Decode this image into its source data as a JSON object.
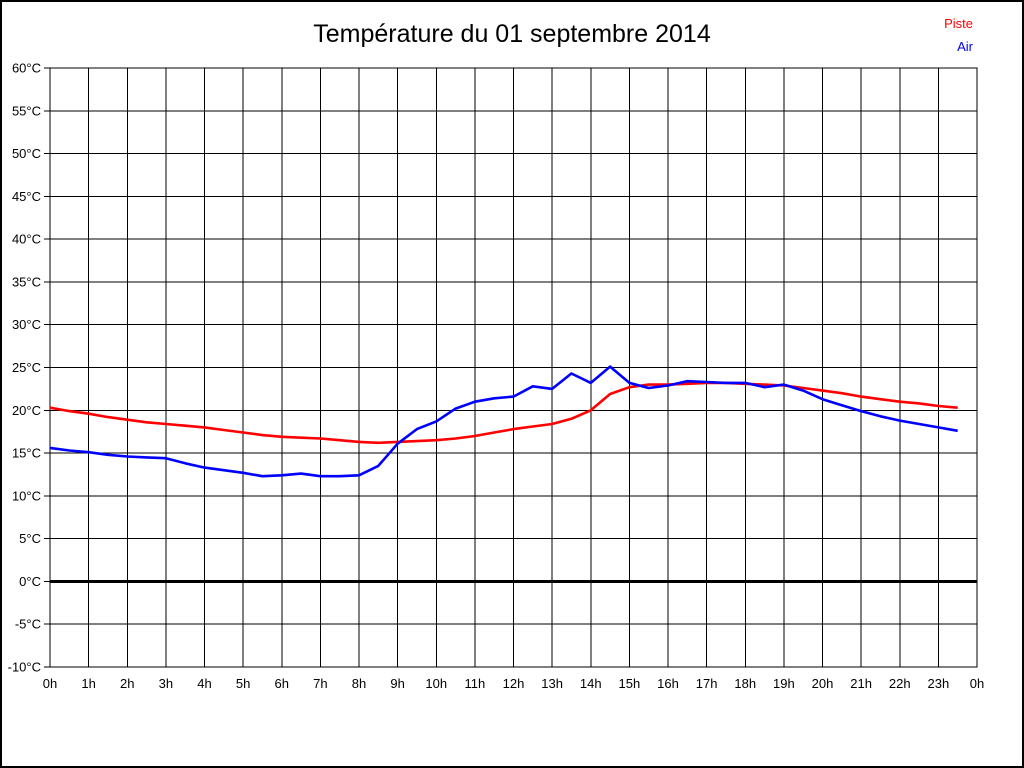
{
  "chart_data": {
    "type": "line",
    "title": "Température du 01 septembre 2014",
    "xlabel": "",
    "ylabel": "",
    "xlim": [
      0,
      24
    ],
    "ylim": [
      -10,
      60
    ],
    "y_tick_step": 5,
    "y_unit": "°C",
    "grid": true,
    "zero_line": true,
    "legend_position": "top-right",
    "x_tick_labels": [
      "0h",
      "1h",
      "2h",
      "3h",
      "4h",
      "5h",
      "6h",
      "7h",
      "8h",
      "9h",
      "10h",
      "11h",
      "12h",
      "13h",
      "14h",
      "15h",
      "16h",
      "17h",
      "18h",
      "19h",
      "20h",
      "21h",
      "22h",
      "23h",
      "0h"
    ],
    "y_tick_labels": [
      "-10°C",
      "-5°C",
      "0°C",
      "5°C",
      "10°C",
      "15°C",
      "20°C",
      "25°C",
      "30°C",
      "35°C",
      "40°C",
      "45°C",
      "50°C",
      "55°C",
      "60°C"
    ],
    "x": [
      0,
      0.5,
      1,
      1.5,
      2,
      2.5,
      3,
      3.5,
      4,
      4.5,
      5,
      5.5,
      6,
      6.5,
      7,
      7.5,
      8,
      8.5,
      9,
      9.5,
      10,
      10.5,
      11,
      11.5,
      12,
      12.5,
      13,
      13.5,
      14,
      14.5,
      15,
      15.5,
      16,
      16.5,
      17,
      17.5,
      18,
      18.5,
      19,
      19.5,
      20,
      20.5,
      21,
      21.5,
      22,
      22.5,
      23,
      23.5
    ],
    "series": [
      {
        "name": "Piste",
        "color": "#ff0000",
        "values": [
          20.3,
          19.9,
          19.6,
          19.2,
          18.9,
          18.6,
          18.4,
          18.2,
          18.0,
          17.7,
          17.4,
          17.1,
          16.9,
          16.8,
          16.7,
          16.5,
          16.3,
          16.2,
          16.3,
          16.4,
          16.5,
          16.7,
          17.0,
          17.4,
          17.8,
          18.1,
          18.4,
          19.0,
          20.0,
          21.9,
          22.7,
          23.0,
          23.0,
          23.1,
          23.2,
          23.2,
          23.1,
          23.0,
          22.9,
          22.6,
          22.3,
          22.0,
          21.6,
          21.3,
          21.0,
          20.8,
          20.5,
          20.3
        ]
      },
      {
        "name": "Air",
        "color": "#0000ff",
        "values": [
          15.6,
          15.3,
          15.1,
          14.8,
          14.6,
          14.5,
          14.4,
          13.8,
          13.3,
          13.0,
          12.7,
          12.3,
          12.4,
          12.6,
          12.3,
          12.3,
          12.4,
          13.5,
          16.1,
          17.8,
          18.7,
          20.2,
          21.0,
          21.4,
          21.6,
          22.8,
          22.5,
          24.3,
          23.2,
          25.1,
          23.2,
          22.6,
          22.9,
          23.4,
          23.3,
          23.2,
          23.2,
          22.7,
          23.0,
          22.3,
          21.3,
          20.6,
          19.9,
          19.3,
          18.8,
          18.4,
          18.0,
          17.6
        ]
      }
    ]
  }
}
